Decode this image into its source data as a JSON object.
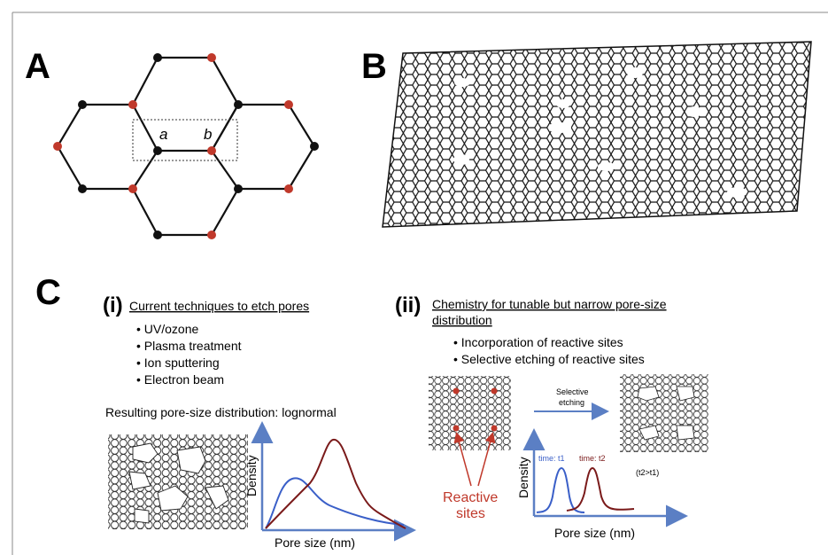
{
  "panel_a": {
    "letter": "A",
    "atom_a": "a",
    "atom_b": "b",
    "colors": {
      "sublattice_a": "#000000",
      "sublattice_b": "#c0392b"
    }
  },
  "panel_b": {
    "letter": "B"
  },
  "panel_c": {
    "letter": "C",
    "part_i": {
      "label": "(i)",
      "heading": "Current techniques to etch pores",
      "bullets": [
        "UV/ozone",
        "Plasma treatment",
        "Ion sputtering",
        "Electron beam"
      ],
      "result_caption": "Resulting pore-size distribution: lognormal",
      "ylabel": "Density",
      "xlabel": "Pore size (nm)"
    },
    "part_ii": {
      "label": "(ii)",
      "heading_line1": "Chemistry for tunable but narrow pore-size",
      "heading_line2": "distribution",
      "bullets": [
        "Incorporation of reactive sites",
        "Selective etching of reactive sites"
      ],
      "arrow_label_line1": "Selective",
      "arrow_label_line2": "etching",
      "time1": "time: t1",
      "time2": "time: t2",
      "time_relation": "(t2>t1)",
      "reactive_line1": "Reactive",
      "reactive_line2": "sites",
      "ylabel": "Density",
      "xlabel": "Pore size (nm)"
    },
    "colors": {
      "blue_curve": "#3a5fc8",
      "red_curve": "#7a1a1a",
      "arrow": "#5b7fc4",
      "reactive": "#c0392b"
    }
  }
}
